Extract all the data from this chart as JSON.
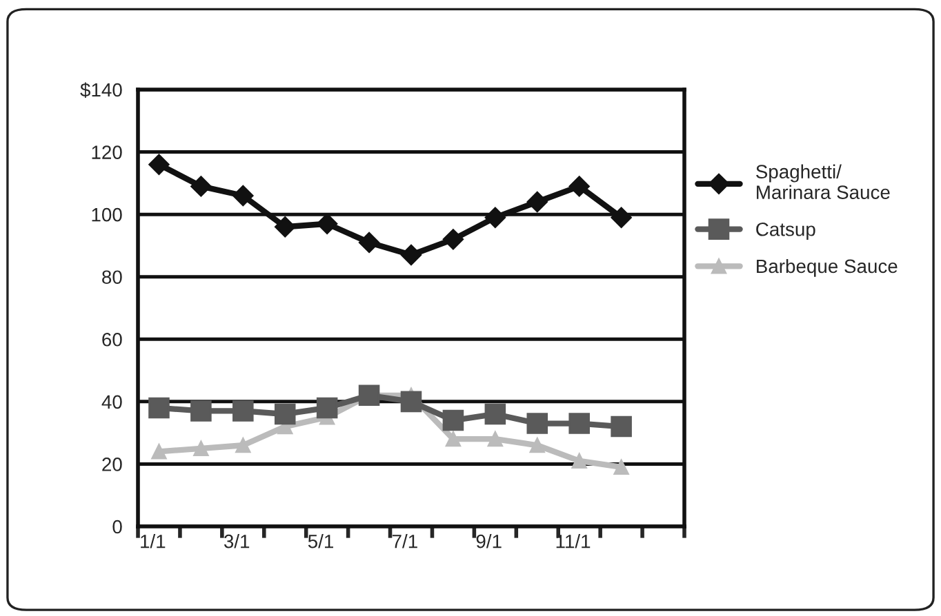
{
  "chart_data": {
    "type": "line",
    "categories": [
      "1/1",
      null,
      "3/1",
      null,
      "5/1",
      null,
      "7/1",
      null,
      "9/1",
      null,
      "11/1",
      null,
      null
    ],
    "series": [
      {
        "name": "Spaghetti/\nMarinara Sauce",
        "color": "#111111",
        "marker": "diamond",
        "values": [
          116,
          109,
          106,
          96,
          97,
          91,
          87,
          92,
          99,
          104,
          109,
          99,
          null
        ]
      },
      {
        "name": "Catsup",
        "color": "#5a5a5a",
        "marker": "square",
        "values": [
          38,
          37,
          37,
          36,
          38,
          42,
          40,
          34,
          36,
          33,
          33,
          32,
          null
        ]
      },
      {
        "name": "Barbeque Sauce",
        "color": "#bbbbbb",
        "marker": "triangle",
        "values": [
          24,
          25,
          26,
          32,
          35,
          42,
          42,
          28,
          28,
          26,
          21,
          19,
          null
        ]
      }
    ],
    "ylim": [
      0,
      140
    ],
    "yticks": [
      0,
      20,
      40,
      60,
      80,
      100,
      120,
      {
        "value": 140,
        "label": "$140"
      }
    ],
    "grid": "y",
    "legend": "right",
    "line_style": "solid"
  }
}
